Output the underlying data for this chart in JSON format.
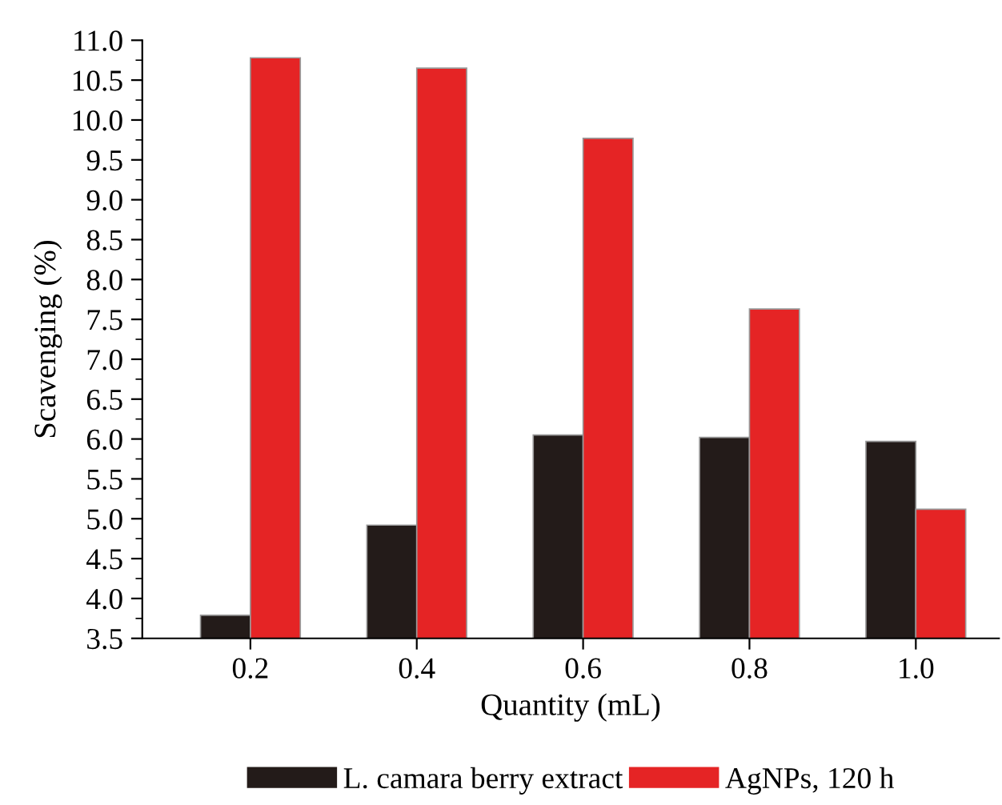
{
  "chart_data": {
    "type": "bar",
    "xlabel": "Quantity (mL)",
    "ylabel": "Scavenging (%)",
    "categories": [
      "0.2",
      "0.4",
      "0.6",
      "0.8",
      "1.0"
    ],
    "series": [
      {
        "name": "L. camara berry extract",
        "color": "#231b19",
        "values": [
          3.79,
          4.92,
          6.05,
          6.02,
          5.97
        ]
      },
      {
        "name": "AgNPs, 120 h",
        "color": "#e52425",
        "values": [
          10.78,
          10.65,
          9.77,
          7.63,
          5.12
        ]
      }
    ],
    "ylim": [
      3.5,
      11.0
    ],
    "yticks": [
      3.5,
      {
        "value": 4,
        "label": "4.0"
      },
      4.5,
      {
        "value": 5,
        "label": "5.0"
      },
      5.5,
      {
        "value": 6,
        "label": "6.0"
      },
      6.5,
      {
        "value": 7,
        "label": "7.0"
      },
      7.5,
      {
        "value": 8,
        "label": "8.0"
      },
      8.5,
      {
        "value": 9,
        "label": "9.0"
      },
      9.5,
      {
        "value": 10,
        "label": "10.0"
      },
      10.5,
      {
        "value": 11,
        "label": "11.0"
      }
    ],
    "grid": false,
    "legend": "bottom"
  }
}
